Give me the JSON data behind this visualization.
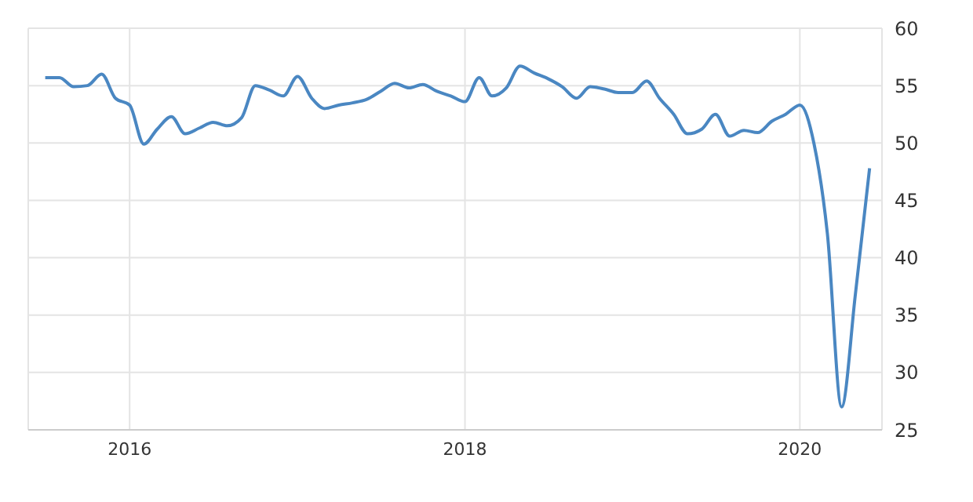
{
  "chart_data": {
    "type": "line",
    "x": [
      "2015-07",
      "2015-08",
      "2015-09",
      "2015-10",
      "2015-11",
      "2015-12",
      "2016-01",
      "2016-02",
      "2016-03",
      "2016-04",
      "2016-05",
      "2016-06",
      "2016-07",
      "2016-08",
      "2016-09",
      "2016-10",
      "2016-11",
      "2016-12",
      "2017-01",
      "2017-02",
      "2017-03",
      "2017-04",
      "2017-05",
      "2017-06",
      "2017-07",
      "2017-08",
      "2017-09",
      "2017-10",
      "2017-11",
      "2017-12",
      "2018-01",
      "2018-02",
      "2018-03",
      "2018-04",
      "2018-05",
      "2018-06",
      "2018-07",
      "2018-08",
      "2018-09",
      "2018-10",
      "2018-11",
      "2018-12",
      "2019-01",
      "2019-02",
      "2019-03",
      "2019-04",
      "2019-05",
      "2019-06",
      "2019-07",
      "2019-08",
      "2019-09",
      "2019-10",
      "2019-11",
      "2019-12",
      "2020-01",
      "2020-02",
      "2020-03",
      "2020-04",
      "2020-05",
      "2020-06"
    ],
    "series": [
      {
        "color": "#4a87c2",
        "values": [
          55.7,
          55.7,
          54.9,
          55,
          56,
          53.9,
          53.3,
          49.9,
          51.2,
          52.3,
          50.8,
          51.3,
          51.8,
          51.5,
          52.2,
          55,
          54.6,
          54.1,
          55.8,
          53.9,
          53,
          53.3,
          53.5,
          53.8,
          54.5,
          55.2,
          54.8,
          55.1,
          54.5,
          54.1,
          53.6,
          55.7,
          54.1,
          54.8,
          56.7,
          56.1,
          55.6,
          54.9,
          53.9,
          54.9,
          54.7,
          54.4,
          54.4,
          55.4,
          53.9,
          52.5,
          50.8,
          51.2,
          52.5,
          50.6,
          51.1,
          50.9,
          51.9,
          52.5,
          53.3,
          49.9,
          42.1,
          27,
          36.8,
          47.8
        ]
      }
    ],
    "xlim": [
      "2015-05-25",
      "2020-06-28"
    ],
    "xticks": [
      "2016",
      "2018",
      "2020"
    ],
    "ylim": [
      25,
      60
    ],
    "yticks": [
      25,
      30,
      35,
      40,
      45,
      50,
      55,
      60
    ],
    "grid": true,
    "marker": "none",
    "line_style": "solid",
    "legend": false
  }
}
